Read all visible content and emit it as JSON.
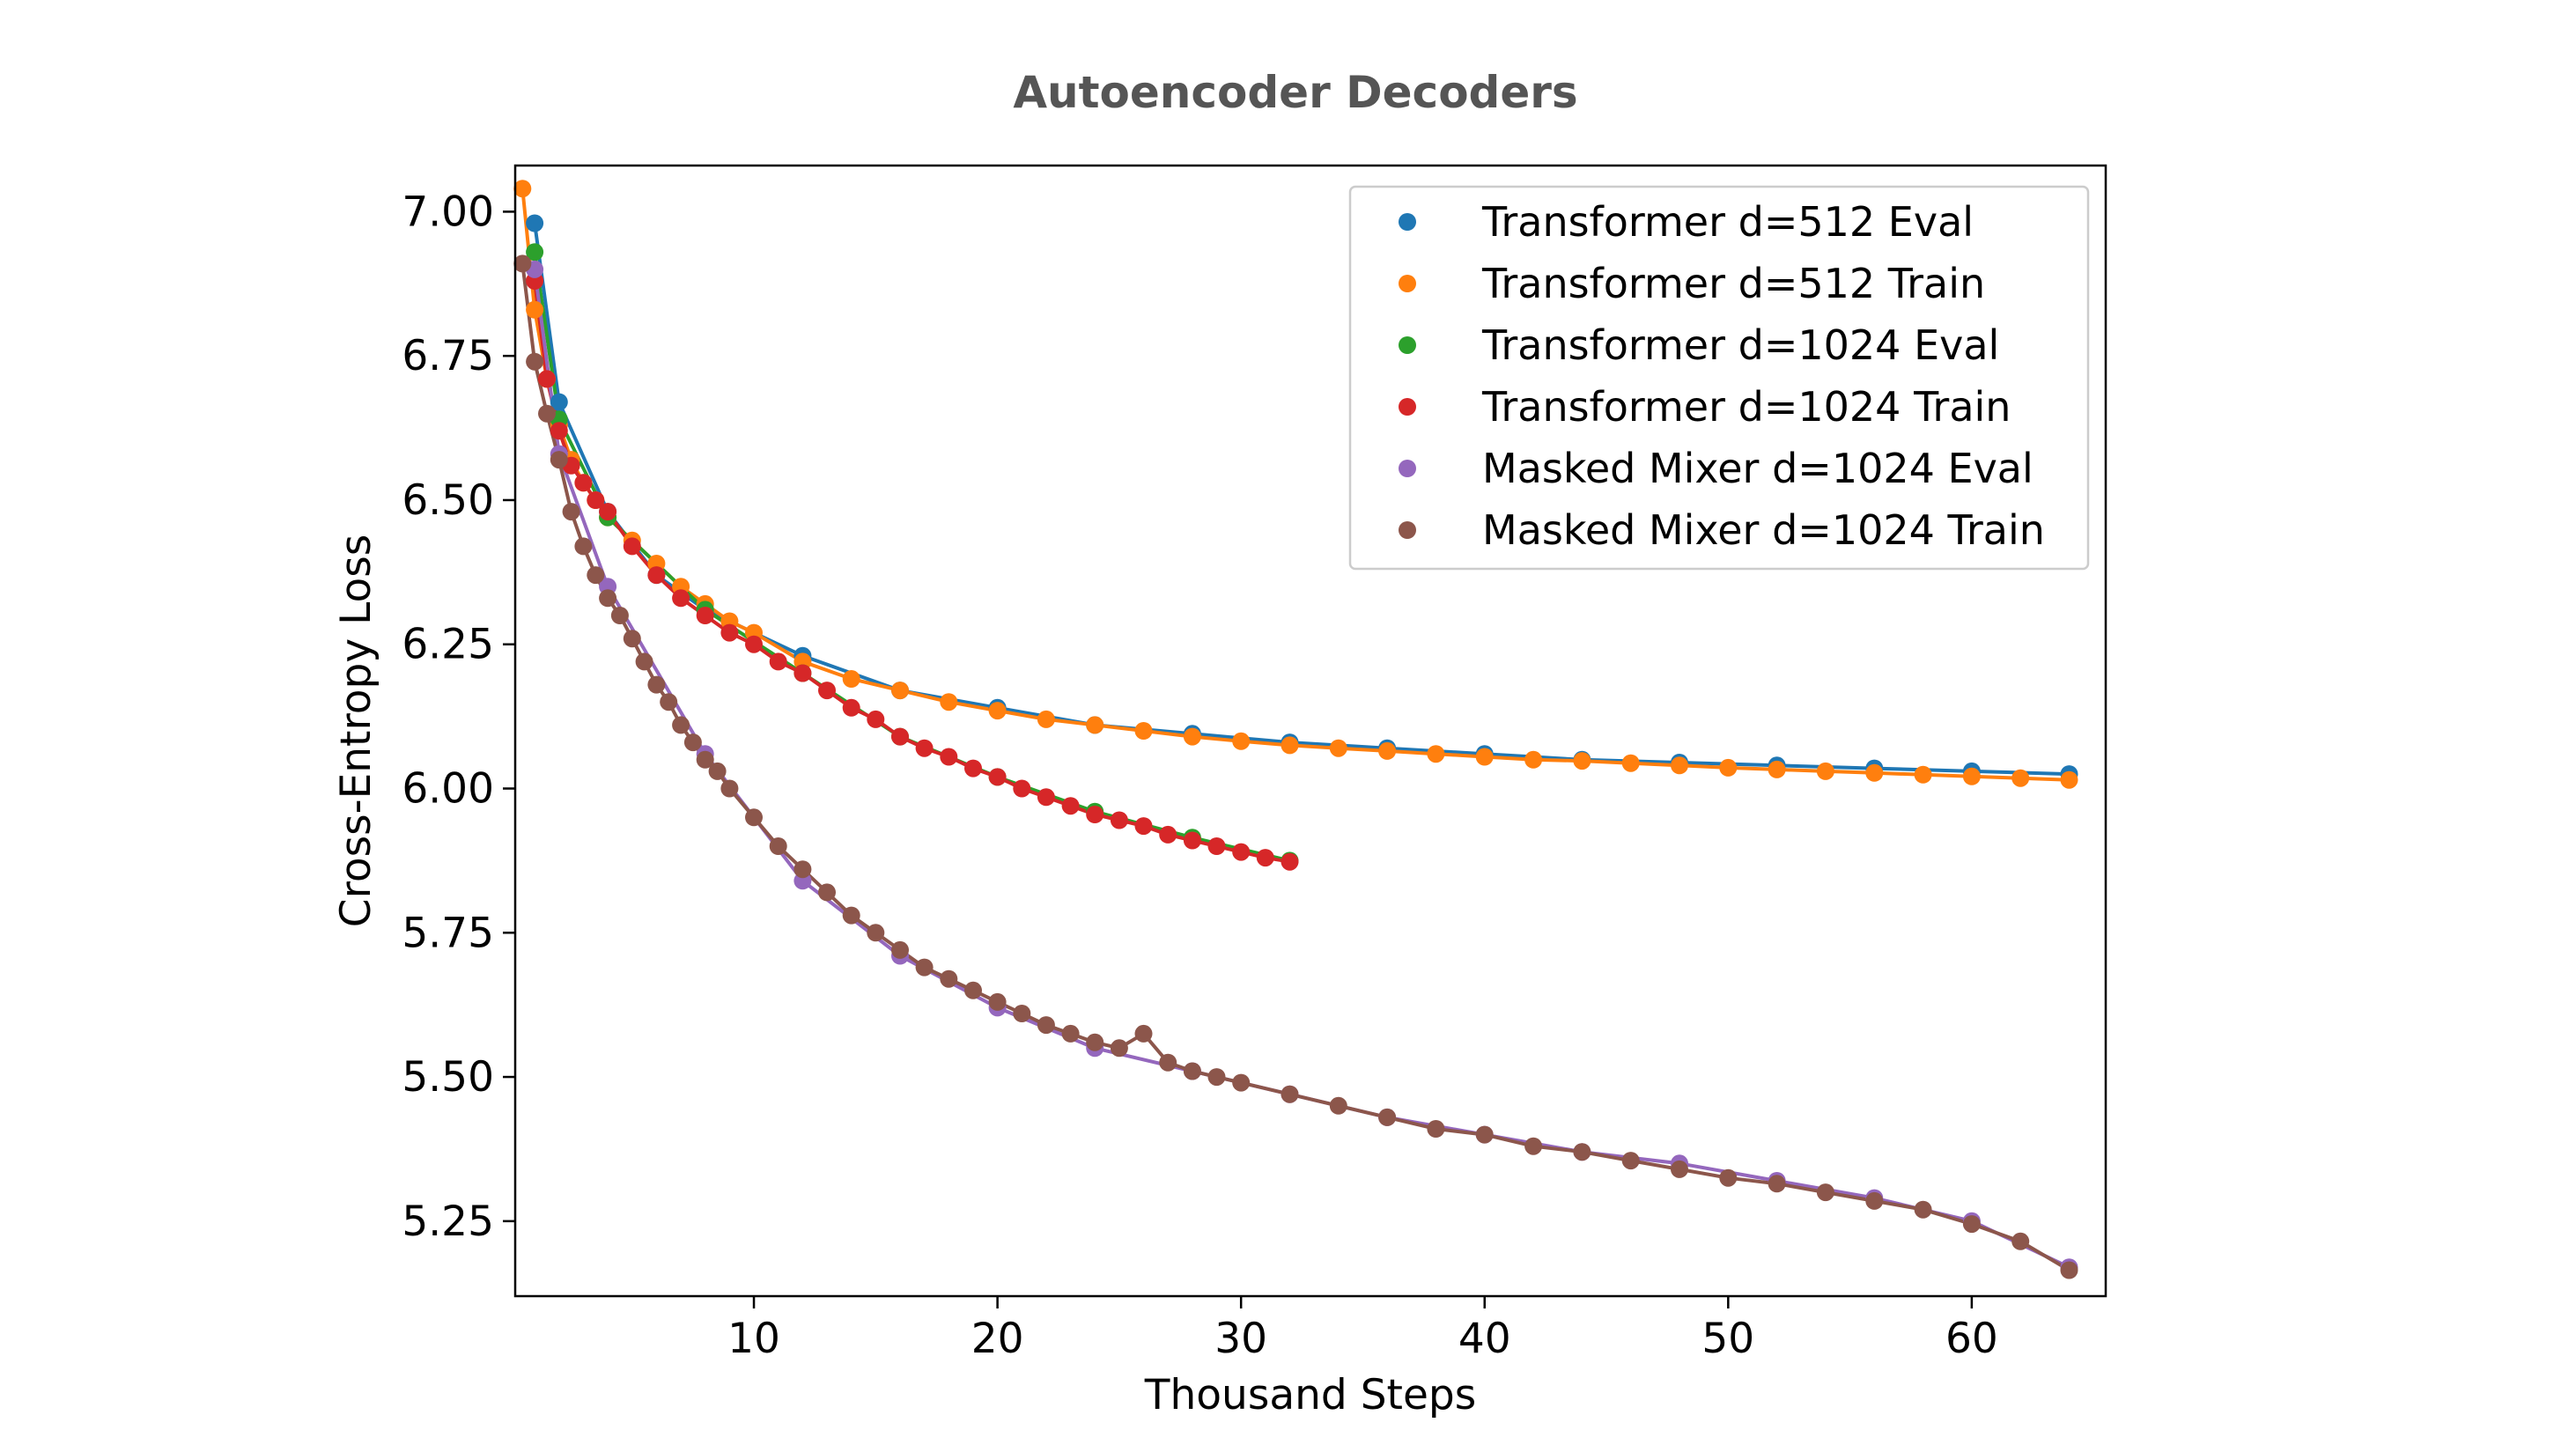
{
  "chart_data": {
    "type": "scatter",
    "title": "Autoencoder Decoders",
    "xlabel": "Thousand Steps",
    "ylabel": "Cross-Entropy Loss",
    "xlim": [
      0.2,
      65.5
    ],
    "ylim": [
      5.12,
      7.08
    ],
    "xticks": [
      10,
      20,
      30,
      40,
      50,
      60
    ],
    "xtick_labels": [
      "10",
      "20",
      "30",
      "40",
      "50",
      "60"
    ],
    "yticks": [
      5.25,
      5.5,
      5.75,
      6.0,
      6.25,
      6.5,
      6.75,
      7.0
    ],
    "ytick_labels": [
      "5.25",
      "5.50",
      "5.75",
      "6.00",
      "6.25",
      "6.50",
      "6.75",
      "7.00"
    ],
    "grid": false,
    "legend_position": "top-right",
    "series": [
      {
        "name": "Transformer d=512 Eval",
        "color": "#1f77b4",
        "x": [
          1,
          2,
          4,
          6,
          8,
          12,
          16,
          20,
          24,
          28,
          32,
          36,
          40,
          44,
          48,
          52,
          56,
          60,
          64
        ],
        "y": [
          6.98,
          6.67,
          6.48,
          6.37,
          6.31,
          6.23,
          6.17,
          6.14,
          6.11,
          6.095,
          6.08,
          6.07,
          6.06,
          6.05,
          6.045,
          6.04,
          6.035,
          6.03,
          6.025
        ]
      },
      {
        "name": "Transformer d=512 Train",
        "color": "#ff7f0e",
        "x": [
          0.5,
          1,
          1.5,
          2,
          2.5,
          3,
          3.5,
          4,
          5,
          6,
          7,
          8,
          9,
          10,
          12,
          14,
          16,
          18,
          20,
          22,
          24,
          26,
          28,
          30,
          32,
          34,
          36,
          38,
          40,
          42,
          44,
          46,
          48,
          50,
          52,
          54,
          56,
          58,
          60,
          62,
          64
        ],
        "y": [
          7.04,
          6.83,
          6.71,
          6.63,
          6.57,
          6.53,
          6.5,
          6.47,
          6.43,
          6.39,
          6.35,
          6.32,
          6.29,
          6.27,
          6.22,
          6.19,
          6.17,
          6.15,
          6.135,
          6.12,
          6.11,
          6.1,
          6.09,
          6.082,
          6.075,
          6.07,
          6.065,
          6.06,
          6.055,
          6.05,
          6.048,
          6.044,
          6.04,
          6.036,
          6.033,
          6.03,
          6.027,
          6.024,
          6.021,
          6.018,
          6.015
        ]
      },
      {
        "name": "Transformer d=1024 Eval",
        "color": "#2ca02c",
        "x": [
          1,
          2,
          4,
          8,
          12,
          16,
          20,
          24,
          28,
          32
        ],
        "y": [
          6.93,
          6.64,
          6.47,
          6.31,
          6.2,
          6.09,
          6.02,
          5.96,
          5.915,
          5.875
        ]
      },
      {
        "name": "Transformer d=1024 Train",
        "color": "#d62728",
        "x": [
          1,
          1.5,
          2,
          2.5,
          3,
          3.5,
          4,
          5,
          6,
          7,
          8,
          9,
          10,
          11,
          12,
          13,
          14,
          15,
          16,
          17,
          18,
          19,
          20,
          21,
          22,
          23,
          24,
          25,
          26,
          27,
          28,
          29,
          30,
          31,
          32
        ],
        "y": [
          6.88,
          6.71,
          6.62,
          6.56,
          6.53,
          6.5,
          6.48,
          6.42,
          6.37,
          6.33,
          6.3,
          6.27,
          6.25,
          6.22,
          6.2,
          6.17,
          6.14,
          6.12,
          6.09,
          6.07,
          6.055,
          6.035,
          6.02,
          6.0,
          5.985,
          5.97,
          5.955,
          5.945,
          5.935,
          5.92,
          5.91,
          5.9,
          5.89,
          5.88,
          5.873
        ]
      },
      {
        "name": "Masked Mixer d=1024 Eval",
        "color": "#9467bd",
        "x": [
          1,
          2,
          4,
          8,
          12,
          16,
          20,
          24,
          28,
          32,
          36,
          40,
          44,
          48,
          52,
          56,
          60,
          64
        ],
        "y": [
          6.9,
          6.58,
          6.35,
          6.06,
          5.84,
          5.71,
          5.62,
          5.55,
          5.51,
          5.47,
          5.43,
          5.4,
          5.37,
          5.35,
          5.32,
          5.29,
          5.25,
          5.17
        ]
      },
      {
        "name": "Masked Mixer d=1024 Train",
        "color": "#8c564b",
        "x": [
          0.5,
          1,
          1.5,
          2,
          2.5,
          3,
          3.5,
          4,
          4.5,
          5,
          5.5,
          6,
          6.5,
          7,
          7.5,
          8,
          8.5,
          9,
          10,
          11,
          12,
          13,
          14,
          15,
          16,
          17,
          18,
          19,
          20,
          21,
          22,
          23,
          24,
          25,
          26,
          27,
          28,
          29,
          30,
          32,
          34,
          36,
          38,
          40,
          42,
          44,
          46,
          48,
          50,
          52,
          54,
          56,
          58,
          60,
          62,
          64
        ],
        "y": [
          6.91,
          6.74,
          6.65,
          6.57,
          6.48,
          6.42,
          6.37,
          6.33,
          6.3,
          6.26,
          6.22,
          6.18,
          6.15,
          6.11,
          6.08,
          6.05,
          6.03,
          6.0,
          5.95,
          5.9,
          5.86,
          5.82,
          5.78,
          5.75,
          5.72,
          5.69,
          5.67,
          5.65,
          5.63,
          5.61,
          5.59,
          5.575,
          5.56,
          5.55,
          5.575,
          5.525,
          5.51,
          5.5,
          5.49,
          5.47,
          5.45,
          5.43,
          5.41,
          5.4,
          5.38,
          5.37,
          5.355,
          5.34,
          5.325,
          5.315,
          5.3,
          5.285,
          5.27,
          5.245,
          5.215,
          5.165
        ]
      }
    ]
  }
}
